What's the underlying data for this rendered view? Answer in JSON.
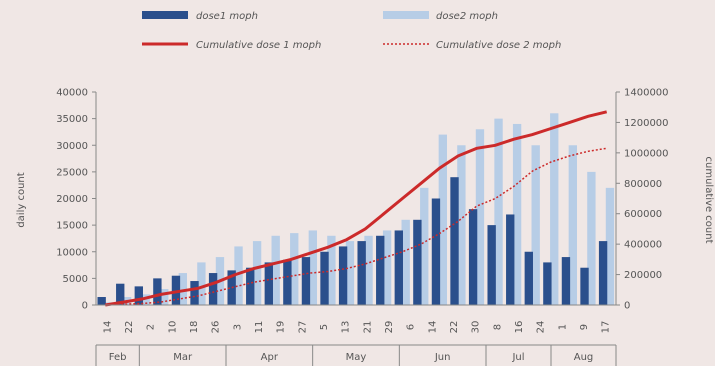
{
  "chart_data": {
    "type": "bar+line",
    "title": "",
    "ylabel": "daily count",
    "y2label": "cumulative count",
    "ylim": [
      0,
      40000
    ],
    "y2lim": [
      0,
      1400000
    ],
    "y_ticks": [
      "0",
      "5000",
      "10000",
      "15000",
      "20000",
      "25000",
      "30000",
      "35000",
      "40000"
    ],
    "y2_ticks": [
      "0",
      "200000",
      "400000",
      "600000",
      "800000",
      "1000000",
      "1200000",
      "1400000"
    ],
    "x_day_ticks": [
      "14",
      "22",
      "2",
      "10",
      "18",
      "26",
      "3",
      "11",
      "19",
      "27",
      "5",
      "13",
      "21",
      "29",
      "6",
      "14",
      "22",
      "30",
      "8",
      "16",
      "24",
      "1",
      "9",
      "17"
    ],
    "months": [
      "Feb",
      "Mar",
      "Apr",
      "May",
      "Jun",
      "Jul",
      "Aug"
    ],
    "legend": {
      "dose1": "dose1 moph",
      "dose2": "dose2 moph",
      "cum1": "Cumulative dose 1 moph",
      "cum2": "Cumulative dose 2 moph"
    },
    "series_daily_dose1": [
      1500,
      4000,
      3500,
      5000,
      5500,
      4500,
      6000,
      6500,
      7000,
      8000,
      8500,
      9000,
      10000,
      11000,
      12000,
      13000,
      14000,
      16000,
      20000,
      24000,
      18000,
      15000,
      17000,
      10000,
      8000,
      9000,
      7000,
      12000
    ],
    "series_daily_dose2": [
      500,
      1500,
      2000,
      3000,
      6000,
      8000,
      9000,
      11000,
      12000,
      13000,
      13500,
      14000,
      13000,
      12000,
      13000,
      14000,
      16000,
      22000,
      32000,
      30000,
      33000,
      35000,
      34000,
      30000,
      36000,
      30000,
      25000,
      22000
    ],
    "series_cum_dose1": [
      0,
      20000,
      40000,
      70000,
      90000,
      110000,
      150000,
      200000,
      240000,
      270000,
      300000,
      340000,
      380000,
      430000,
      500000,
      600000,
      700000,
      800000,
      900000,
      980000,
      1030000,
      1050000,
      1090000,
      1120000,
      1160000,
      1200000,
      1240000,
      1270000
    ],
    "series_cum_dose2": [
      0,
      5000,
      10000,
      20000,
      40000,
      60000,
      90000,
      120000,
      150000,
      170000,
      190000,
      210000,
      220000,
      240000,
      270000,
      310000,
      350000,
      400000,
      470000,
      550000,
      650000,
      700000,
      780000,
      880000,
      940000,
      980000,
      1010000,
      1030000
    ],
    "colors": {
      "dose1": "#2a4f8c",
      "dose2": "#b7cde6",
      "cum1": "#cc2a2a",
      "cum2": "#cc2a2a",
      "axis": "#888888"
    }
  }
}
